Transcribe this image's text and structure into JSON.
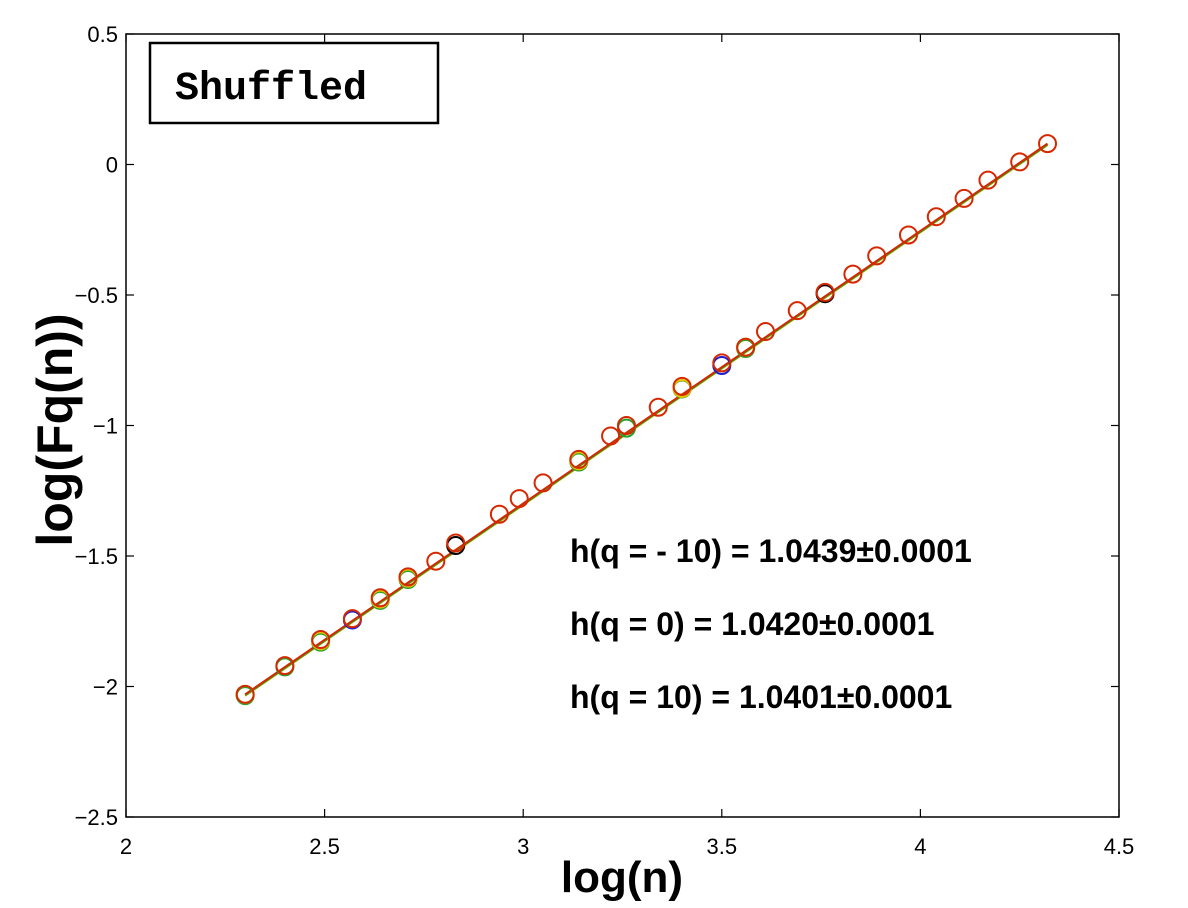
{
  "chart_data": {
    "type": "scatter",
    "xlabel": "log(n)",
    "ylabel": "log(Fq(n))",
    "xlim": [
      2,
      4.5
    ],
    "ylim": [
      -2.5,
      0.5
    ],
    "x_ticks": [
      "2",
      "2.5",
      "3",
      "3.5",
      "4",
      "4.5"
    ],
    "y_ticks": [
      "0.5",
      "0",
      "−0.5",
      "−1",
      "−1.5",
      "−2",
      "−2.5"
    ],
    "grid": false,
    "box_label": "Shuffled",
    "annotations": [
      "h(q = - 10) = 1.0439±0.0001",
      "h(q = 0) = 1.0420±0.0001",
      "h(q = 10) = 1.0401±0.0001"
    ],
    "fit_line": {
      "x": [
        2.3,
        4.32
      ],
      "y": [
        -2.03,
        0.08
      ],
      "color": "#d62800"
    },
    "series": [
      {
        "color": "#2ca02c",
        "x": [
          2.3,
          2.4,
          2.49,
          2.64,
          2.71,
          3.14,
          3.26,
          3.4,
          3.56
        ],
        "y": [
          -2.035,
          -1.925,
          -1.83,
          -1.67,
          -1.59,
          -1.14,
          -1.01,
          -0.86,
          -0.705
        ]
      },
      {
        "color": "#e6c200",
        "x": [
          2.3,
          2.49,
          2.64,
          2.71,
          3.14,
          3.4,
          3.56
        ],
        "y": [
          -2.03,
          -1.825,
          -1.665,
          -1.585,
          -1.135,
          -0.858,
          -0.7
        ]
      },
      {
        "color": "#1f1fd0",
        "x": [
          2.57,
          3.5
        ],
        "y": [
          -1.745,
          -0.77
        ]
      },
      {
        "color": "#000000",
        "x": [
          2.83,
          3.76
        ],
        "y": [
          -1.46,
          -0.495
        ]
      },
      {
        "color": "#d62800",
        "x": [
          2.3,
          2.4,
          2.49,
          2.57,
          2.64,
          2.71,
          2.78,
          2.83,
          2.94,
          2.99,
          3.05,
          3.14,
          3.22,
          3.26,
          3.34,
          3.4,
          3.5,
          3.56,
          3.61,
          3.69,
          3.76,
          3.83,
          3.89,
          3.97,
          4.04,
          4.11,
          4.17,
          4.25,
          4.32
        ],
        "y": [
          -2.03,
          -1.92,
          -1.82,
          -1.74,
          -1.66,
          -1.58,
          -1.52,
          -1.45,
          -1.34,
          -1.28,
          -1.22,
          -1.13,
          -1.04,
          -1.0,
          -0.93,
          -0.85,
          -0.76,
          -0.7,
          -0.64,
          -0.56,
          -0.49,
          -0.42,
          -0.35,
          -0.27,
          -0.2,
          -0.13,
          -0.06,
          0.01,
          0.08
        ]
      }
    ]
  }
}
